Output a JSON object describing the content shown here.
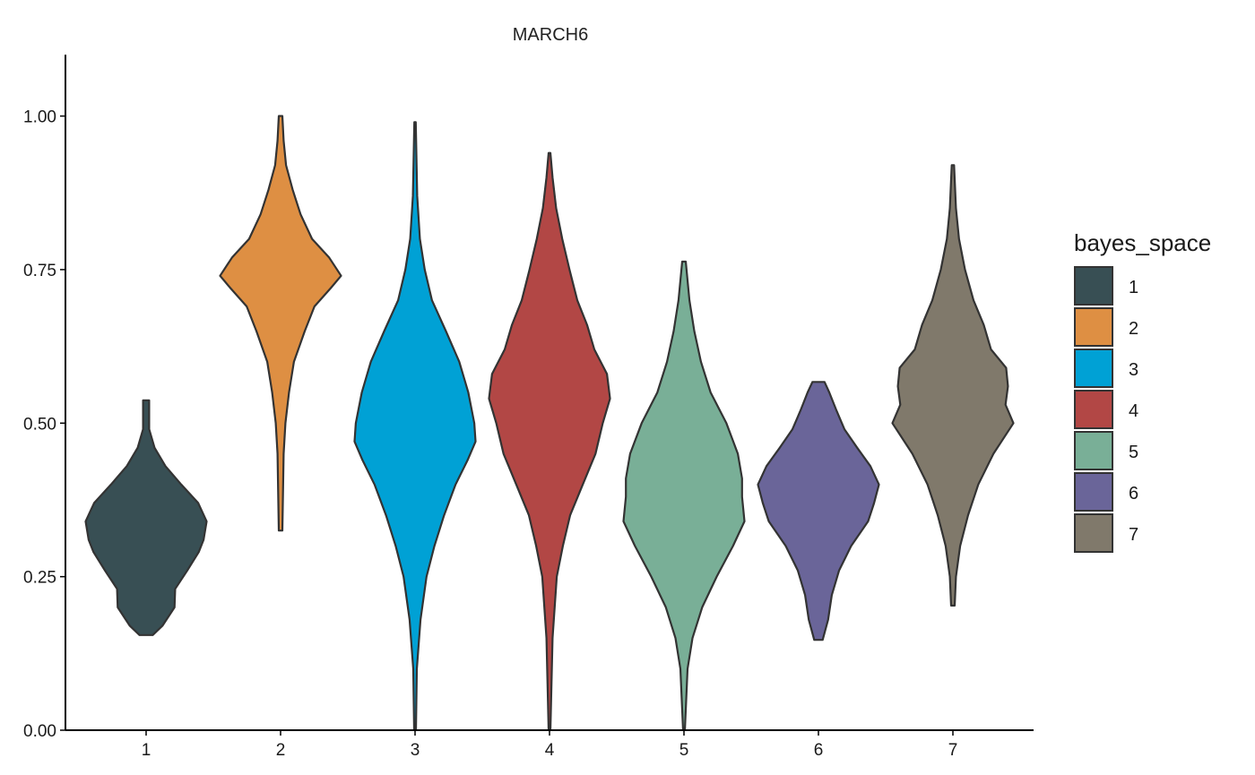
{
  "chart_data": {
    "type": "violin",
    "title": "MARCH6",
    "xlabel": "",
    "ylabel": "",
    "ylim": [
      0,
      1.1
    ],
    "grid": false,
    "categories": [
      "1",
      "2",
      "3",
      "4",
      "5",
      "6",
      "7"
    ],
    "y_ticks": [
      "0.00",
      "0.25",
      "0.50",
      "0.75",
      "1.00"
    ],
    "y_tick_values": [
      0,
      0.25,
      0.5,
      0.75,
      1.0
    ],
    "legend": {
      "title": "bayes_space",
      "position": "right",
      "items": [
        "1",
        "2",
        "3",
        "4",
        "5",
        "6",
        "7"
      ]
    },
    "series": [
      {
        "category": "1",
        "color": "#384F54",
        "min": 0.155,
        "max": 0.537,
        "density": [
          [
            0.155,
            0.11
          ],
          [
            0.17,
            0.27
          ],
          [
            0.2,
            0.47
          ],
          [
            0.23,
            0.48
          ],
          [
            0.26,
            0.68
          ],
          [
            0.29,
            0.87
          ],
          [
            0.31,
            0.95
          ],
          [
            0.34,
            1.0
          ],
          [
            0.37,
            0.86
          ],
          [
            0.4,
            0.58
          ],
          [
            0.43,
            0.32
          ],
          [
            0.46,
            0.14
          ],
          [
            0.49,
            0.05
          ],
          [
            0.537,
            0.05
          ]
        ]
      },
      {
        "category": "2",
        "color": "#DE8F43",
        "min": 0.325,
        "max": 1.0,
        "density": [
          [
            0.325,
            0.03
          ],
          [
            0.45,
            0.05
          ],
          [
            0.5,
            0.08
          ],
          [
            0.55,
            0.14
          ],
          [
            0.6,
            0.22
          ],
          [
            0.65,
            0.4
          ],
          [
            0.69,
            0.56
          ],
          [
            0.72,
            0.83
          ],
          [
            0.74,
            1.0
          ],
          [
            0.77,
            0.8
          ],
          [
            0.8,
            0.52
          ],
          [
            0.84,
            0.33
          ],
          [
            0.88,
            0.2
          ],
          [
            0.92,
            0.09
          ],
          [
            0.96,
            0.05
          ],
          [
            1.0,
            0.03
          ]
        ]
      },
      {
        "category": "3",
        "color": "#00A1D5",
        "min": 0.0,
        "max": 0.99,
        "density": [
          [
            0.0,
            0.015
          ],
          [
            0.1,
            0.03
          ],
          [
            0.18,
            0.09
          ],
          [
            0.25,
            0.19
          ],
          [
            0.3,
            0.32
          ],
          [
            0.35,
            0.48
          ],
          [
            0.4,
            0.67
          ],
          [
            0.44,
            0.87
          ],
          [
            0.47,
            1.0
          ],
          [
            0.5,
            0.98
          ],
          [
            0.55,
            0.88
          ],
          [
            0.6,
            0.73
          ],
          [
            0.65,
            0.51
          ],
          [
            0.7,
            0.28
          ],
          [
            0.75,
            0.16
          ],
          [
            0.8,
            0.08
          ],
          [
            0.87,
            0.035
          ],
          [
            0.99,
            0.012
          ]
        ]
      },
      {
        "category": "4",
        "color": "#B24745",
        "min": 0.0,
        "max": 0.94,
        "density": [
          [
            0.0,
            0.015
          ],
          [
            0.15,
            0.05
          ],
          [
            0.25,
            0.12
          ],
          [
            0.3,
            0.22
          ],
          [
            0.35,
            0.34
          ],
          [
            0.4,
            0.55
          ],
          [
            0.45,
            0.76
          ],
          [
            0.5,
            0.88
          ],
          [
            0.54,
            1.0
          ],
          [
            0.58,
            0.95
          ],
          [
            0.62,
            0.74
          ],
          [
            0.66,
            0.62
          ],
          [
            0.7,
            0.46
          ],
          [
            0.75,
            0.33
          ],
          [
            0.8,
            0.21
          ],
          [
            0.85,
            0.11
          ],
          [
            0.9,
            0.05
          ],
          [
            0.94,
            0.015
          ]
        ]
      },
      {
        "category": "5",
        "color": "#79AF97",
        "min": 0.0,
        "max": 0.763,
        "density": [
          [
            0.0,
            0.015
          ],
          [
            0.1,
            0.06
          ],
          [
            0.15,
            0.14
          ],
          [
            0.2,
            0.3
          ],
          [
            0.25,
            0.54
          ],
          [
            0.3,
            0.81
          ],
          [
            0.34,
            1.0
          ],
          [
            0.38,
            0.96
          ],
          [
            0.41,
            0.96
          ],
          [
            0.45,
            0.89
          ],
          [
            0.5,
            0.7
          ],
          [
            0.55,
            0.44
          ],
          [
            0.6,
            0.28
          ],
          [
            0.65,
            0.17
          ],
          [
            0.7,
            0.09
          ],
          [
            0.763,
            0.03
          ]
        ]
      },
      {
        "category": "6",
        "color": "#6A6599",
        "min": 0.147,
        "max": 0.567,
        "density": [
          [
            0.147,
            0.07
          ],
          [
            0.18,
            0.16
          ],
          [
            0.22,
            0.22
          ],
          [
            0.26,
            0.34
          ],
          [
            0.3,
            0.54
          ],
          [
            0.34,
            0.82
          ],
          [
            0.37,
            0.92
          ],
          [
            0.4,
            1.0
          ],
          [
            0.43,
            0.86
          ],
          [
            0.46,
            0.64
          ],
          [
            0.49,
            0.43
          ],
          [
            0.52,
            0.3
          ],
          [
            0.55,
            0.18
          ],
          [
            0.567,
            0.1
          ]
        ]
      },
      {
        "category": "7",
        "color": "#80796B",
        "min": 0.203,
        "max": 0.92,
        "density": [
          [
            0.203,
            0.03
          ],
          [
            0.25,
            0.05
          ],
          [
            0.3,
            0.12
          ],
          [
            0.35,
            0.25
          ],
          [
            0.4,
            0.42
          ],
          [
            0.45,
            0.67
          ],
          [
            0.5,
            1.0
          ],
          [
            0.53,
            0.87
          ],
          [
            0.56,
            0.91
          ],
          [
            0.59,
            0.88
          ],
          [
            0.62,
            0.63
          ],
          [
            0.66,
            0.51
          ],
          [
            0.7,
            0.34
          ],
          [
            0.75,
            0.2
          ],
          [
            0.8,
            0.1
          ],
          [
            0.85,
            0.05
          ],
          [
            0.92,
            0.02
          ]
        ]
      }
    ]
  }
}
